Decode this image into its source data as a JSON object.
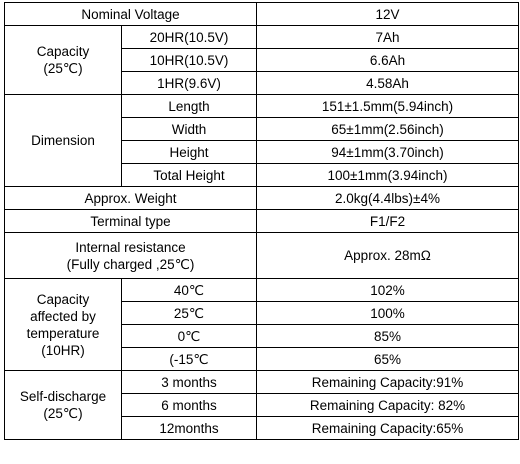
{
  "rows": {
    "nominal_voltage": {
      "label": "Nominal Voltage",
      "value": "12V"
    },
    "capacity": {
      "label_line1": "Capacity",
      "label_line2": "(25℃)",
      "items": [
        {
          "rate": "20HR(10.5V)",
          "value": "7Ah"
        },
        {
          "rate": "10HR(10.5V)",
          "value": "6.6Ah"
        },
        {
          "rate": "1HR(9.6V)",
          "value": "4.58Ah"
        }
      ]
    },
    "dimension": {
      "label": "Dimension",
      "items": [
        {
          "name": "Length",
          "value": "151±1.5mm(5.94inch)"
        },
        {
          "name": "Width",
          "value": "65±1mm(2.56inch)"
        },
        {
          "name": "Height",
          "value": "94±1mm(3.70inch)"
        },
        {
          "name": "Total Height",
          "value": "100±1mm(3.94inch)"
        }
      ]
    },
    "weight": {
      "label": "Approx. Weight",
      "value": "2.0kg(4.4lbs)±4%"
    },
    "terminal": {
      "label": "Terminal type",
      "value": "F1/F2"
    },
    "internal_resistance": {
      "label_line1": "Internal resistance",
      "label_line2": "(Fully charged ,25℃)",
      "value": "Approx. 28mΩ"
    },
    "capacity_temp": {
      "label_line1": "Capacity",
      "label_line2": "affected by",
      "label_line3": "temperature",
      "label_line4": "(10HR)",
      "items": [
        {
          "temp": "40℃",
          "value": "102%"
        },
        {
          "temp": "25℃",
          "value": "100%"
        },
        {
          "temp": "0℃",
          "value": "85%"
        },
        {
          "temp": "(-15℃",
          "value": "65%"
        }
      ]
    },
    "self_discharge": {
      "label_line1": "Self-discharge",
      "label_line2": "(25℃)",
      "items": [
        {
          "period": "3 months",
          "value": "Remaining Capacity:91%"
        },
        {
          "period": "6 months",
          "value": "Remaining Capacity: 82%"
        },
        {
          "period": "12months",
          "value": "Remaining Capacity:65%"
        }
      ]
    }
  }
}
